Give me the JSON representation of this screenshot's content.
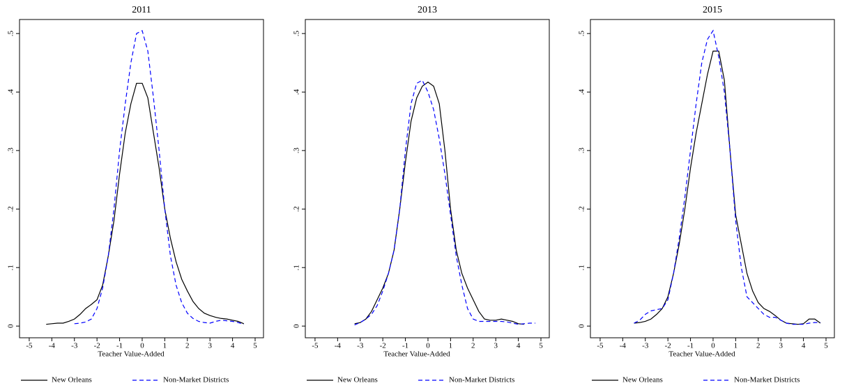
{
  "chart_data": [
    {
      "type": "line",
      "title": "2011",
      "xlabel": "Teacher Value-Added",
      "x": [
        -4.25,
        -4,
        -3.75,
        -3.5,
        -3.25,
        -3,
        -2.75,
        -2.5,
        -2.25,
        -2,
        -1.75,
        -1.5,
        -1.25,
        -1,
        -0.75,
        -0.5,
        -0.25,
        0,
        0.25,
        0.5,
        0.75,
        1,
        1.25,
        1.5,
        1.75,
        2,
        2.25,
        2.5,
        2.75,
        3,
        3.25,
        3.5,
        3.75,
        4,
        4.25,
        4.5,
        4.75
      ],
      "series": [
        {
          "name": "New Orleans",
          "color": "#000000",
          "linestyle": "solid",
          "values": [
            0.003,
            0.004,
            0.005,
            0.005,
            0.008,
            0.012,
            0.02,
            0.03,
            0.037,
            0.045,
            0.07,
            0.12,
            0.18,
            0.26,
            0.33,
            0.38,
            0.415,
            0.415,
            0.39,
            0.33,
            0.27,
            0.2,
            0.15,
            0.11,
            0.08,
            0.06,
            0.042,
            0.03,
            0.022,
            0.018,
            0.015,
            0.013,
            0.012,
            0.01,
            0.008,
            0.004,
            null
          ]
        },
        {
          "name": "Non-Market Districts",
          "color": "#0000ff",
          "linestyle": "dashed",
          "values": [
            null,
            null,
            null,
            null,
            null,
            0.004,
            0.005,
            0.007,
            0.012,
            0.03,
            0.065,
            0.12,
            0.2,
            0.3,
            0.38,
            0.45,
            0.5,
            0.505,
            0.47,
            0.39,
            0.3,
            0.2,
            0.12,
            0.07,
            0.04,
            0.022,
            0.013,
            0.008,
            0.006,
            0.005,
            0.008,
            0.01,
            0.009,
            0.008,
            0.006,
            0.003,
            null
          ]
        }
      ],
      "xlim": [
        -5.43,
        5.37
      ],
      "ylim": [
        -0.02,
        0.524
      ],
      "xticks": [
        -5,
        -4,
        -3,
        -2,
        -1,
        0,
        1,
        2,
        3,
        4,
        5
      ],
      "yticks": [
        0,
        {
          "value": 0.1,
          "label": ".1"
        },
        {
          "value": 0.2,
          "label": ".2"
        },
        {
          "value": 0.3,
          "label": ".3"
        },
        {
          "value": 0.4,
          "label": ".4"
        },
        {
          "value": 0.5,
          "label": ".5"
        }
      ]
    },
    {
      "type": "line",
      "title": "2013",
      "xlabel": "Teacher Value-Added",
      "x": [
        -4.25,
        -4,
        -3.75,
        -3.5,
        -3.25,
        -3,
        -2.75,
        -2.5,
        -2.25,
        -2,
        -1.75,
        -1.5,
        -1.25,
        -1,
        -0.75,
        -0.5,
        -0.25,
        0,
        0.25,
        0.5,
        0.75,
        1,
        1.25,
        1.5,
        1.75,
        2,
        2.25,
        2.5,
        2.75,
        3,
        3.25,
        3.5,
        3.75,
        4,
        4.25,
        4.5,
        4.75
      ],
      "series": [
        {
          "name": "New Orleans",
          "color": "#000000",
          "linestyle": "solid",
          "values": [
            null,
            null,
            null,
            null,
            0.004,
            0.006,
            0.012,
            0.025,
            0.045,
            0.065,
            0.09,
            0.13,
            0.2,
            0.28,
            0.35,
            0.39,
            0.41,
            0.417,
            0.41,
            0.38,
            0.3,
            0.2,
            0.13,
            0.09,
            0.065,
            0.045,
            0.025,
            0.012,
            0.01,
            0.01,
            0.012,
            0.01,
            0.008,
            0.004,
            0.003,
            null,
            null
          ]
        },
        {
          "name": "Non-Market Districts",
          "color": "#0000ff",
          "linestyle": "dashed",
          "values": [
            null,
            null,
            null,
            null,
            0.002,
            0.006,
            0.012,
            0.02,
            0.035,
            0.06,
            0.09,
            0.13,
            0.2,
            0.3,
            0.38,
            0.415,
            0.42,
            0.4,
            0.37,
            0.32,
            0.26,
            0.19,
            0.12,
            0.07,
            0.03,
            0.012,
            0.008,
            0.008,
            0.008,
            0.008,
            0.008,
            0.007,
            0.005,
            0.003,
            0.004,
            0.005,
            0.005
          ]
        }
      ],
      "xlim": [
        -5.43,
        5.37
      ],
      "ylim": [
        -0.02,
        0.524
      ],
      "xticks": [
        -5,
        -4,
        -3,
        -2,
        -1,
        0,
        1,
        2,
        3,
        4,
        5
      ],
      "yticks": [
        0,
        {
          "value": 0.1,
          "label": ".1"
        },
        {
          "value": 0.2,
          "label": ".2"
        },
        {
          "value": 0.3,
          "label": ".3"
        },
        {
          "value": 0.4,
          "label": ".4"
        },
        {
          "value": 0.5,
          "label": ".5"
        }
      ]
    },
    {
      "type": "line",
      "title": "2015",
      "xlabel": "Teacher Value-Added",
      "x": [
        -4.25,
        -4,
        -3.75,
        -3.5,
        -3.25,
        -3,
        -2.75,
        -2.5,
        -2.25,
        -2,
        -1.75,
        -1.5,
        -1.25,
        -1,
        -0.75,
        -0.5,
        -0.25,
        0,
        0.25,
        0.5,
        0.75,
        1,
        1.25,
        1.5,
        1.75,
        2,
        2.25,
        2.5,
        2.75,
        3,
        3.25,
        3.5,
        3.75,
        4,
        4.25,
        4.5,
        4.75
      ],
      "series": [
        {
          "name": "New Orleans",
          "color": "#000000",
          "linestyle": "solid",
          "values": [
            null,
            null,
            null,
            0.005,
            0.006,
            0.008,
            0.012,
            0.02,
            0.03,
            0.05,
            0.09,
            0.14,
            0.2,
            0.27,
            0.33,
            0.38,
            0.43,
            0.47,
            0.47,
            0.42,
            0.3,
            0.19,
            0.14,
            0.09,
            0.06,
            0.04,
            0.03,
            0.025,
            0.018,
            0.01,
            0.005,
            0.004,
            0.003,
            0.004,
            0.012,
            0.012,
            0.005
          ]
        },
        {
          "name": "Non-Market Districts",
          "color": "#0000ff",
          "linestyle": "dashed",
          "values": [
            null,
            null,
            null,
            0.005,
            0.01,
            0.02,
            0.026,
            0.028,
            0.03,
            0.045,
            0.09,
            0.15,
            0.22,
            0.3,
            0.38,
            0.45,
            0.49,
            0.505,
            0.46,
            0.4,
            0.3,
            0.18,
            0.1,
            0.05,
            0.04,
            0.03,
            0.02,
            0.015,
            0.015,
            0.01,
            0.005,
            0.003,
            0.003,
            0.003,
            0.005,
            0.006,
            0.006
          ]
        }
      ],
      "xlim": [
        -5.43,
        5.37
      ],
      "ylim": [
        -0.02,
        0.524
      ],
      "xticks": [
        -5,
        -4,
        -3,
        -2,
        -1,
        0,
        1,
        2,
        3,
        4,
        5
      ],
      "yticks": [
        0,
        {
          "value": 0.1,
          "label": ".1"
        },
        {
          "value": 0.2,
          "label": ".2"
        },
        {
          "value": 0.3,
          "label": ".3"
        },
        {
          "value": 0.4,
          "label": ".4"
        },
        {
          "value": 0.5,
          "label": ".5"
        }
      ]
    }
  ]
}
